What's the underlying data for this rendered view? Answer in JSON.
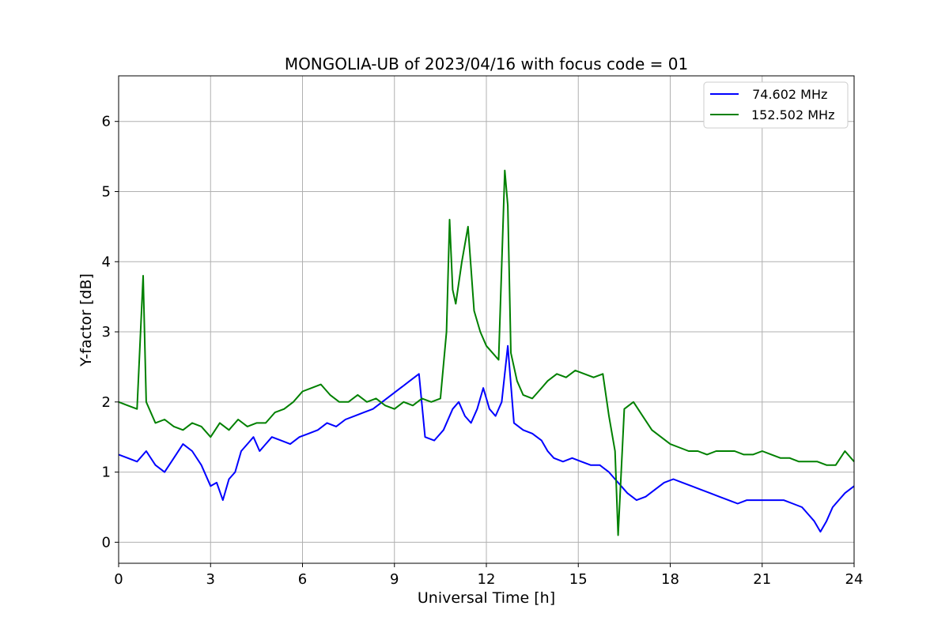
{
  "chart_data": {
    "type": "line",
    "title": "MONGOLIA-UB of 2023/04/16 with focus code = 01",
    "xlabel": "Universal Time [h]",
    "ylabel": "Y-factor [dB]",
    "xlim": [
      0,
      24
    ],
    "ylim": [
      -0.3,
      6.65
    ],
    "xticks": [
      0,
      3,
      6,
      9,
      12,
      15,
      18,
      21,
      24
    ],
    "yticks": [
      0,
      1,
      2,
      3,
      4,
      5,
      6
    ],
    "grid": true,
    "legend_position": "top-right",
    "series": [
      {
        "name": " 74.602 MHz",
        "color": "#0000ff",
        "x": [
          0,
          0.3,
          0.6,
          0.9,
          1.2,
          1.5,
          1.8,
          2.1,
          2.4,
          2.7,
          3.0,
          3.2,
          3.4,
          3.6,
          3.8,
          4.0,
          4.2,
          4.4,
          4.6,
          4.8,
          5.0,
          5.3,
          5.6,
          5.9,
          6.2,
          6.5,
          6.8,
          7.1,
          7.4,
          7.7,
          8.0,
          8.3,
          8.6,
          8.9,
          9.2,
          9.5,
          9.8,
          10.0,
          10.3,
          10.6,
          10.9,
          11.1,
          11.3,
          11.5,
          11.7,
          11.9,
          12.1,
          12.3,
          12.5,
          12.7,
          12.9,
          13.2,
          13.5,
          13.8,
          14.0,
          14.2,
          14.5,
          14.8,
          15.1,
          15.4,
          15.7,
          16.0,
          16.2,
          16.4,
          16.6,
          16.9,
          17.2,
          17.5,
          17.8,
          18.1,
          18.4,
          18.7,
          19.0,
          19.3,
          19.6,
          19.9,
          20.2,
          20.5,
          20.8,
          21.1,
          21.4,
          21.7,
          22.0,
          22.3,
          22.5,
          22.7,
          22.9,
          23.1,
          23.3,
          23.5,
          23.7,
          24.0
        ],
        "y": [
          1.25,
          1.2,
          1.15,
          1.3,
          1.1,
          1.0,
          1.2,
          1.4,
          1.3,
          1.1,
          0.8,
          0.85,
          0.6,
          0.9,
          1.0,
          1.3,
          1.4,
          1.5,
          1.3,
          1.4,
          1.5,
          1.45,
          1.4,
          1.5,
          1.55,
          1.6,
          1.7,
          1.65,
          1.75,
          1.8,
          1.85,
          1.9,
          2.0,
          2.1,
          2.2,
          2.3,
          2.4,
          1.5,
          1.45,
          1.6,
          1.9,
          2.0,
          1.8,
          1.7,
          1.9,
          2.2,
          1.9,
          1.8,
          2.0,
          2.8,
          1.7,
          1.6,
          1.55,
          1.45,
          1.3,
          1.2,
          1.15,
          1.2,
          1.15,
          1.1,
          1.1,
          1.0,
          0.9,
          0.8,
          0.7,
          0.6,
          0.65,
          0.75,
          0.85,
          0.9,
          0.85,
          0.8,
          0.75,
          0.7,
          0.65,
          0.6,
          0.55,
          0.6,
          0.6,
          0.6,
          0.6,
          0.6,
          0.55,
          0.5,
          0.4,
          0.3,
          0.15,
          0.3,
          0.5,
          0.6,
          0.7,
          0.8
        ]
      },
      {
        "name": "152.502 MHz",
        "color": "#008000",
        "x": [
          0,
          0.3,
          0.6,
          0.8,
          0.9,
          1.2,
          1.5,
          1.8,
          2.1,
          2.4,
          2.7,
          3.0,
          3.3,
          3.6,
          3.9,
          4.2,
          4.5,
          4.8,
          5.1,
          5.4,
          5.7,
          6.0,
          6.3,
          6.6,
          6.9,
          7.2,
          7.5,
          7.8,
          8.1,
          8.4,
          8.7,
          9.0,
          9.3,
          9.6,
          9.9,
          10.2,
          10.5,
          10.7,
          10.8,
          10.9,
          11.0,
          11.2,
          11.4,
          11.6,
          11.8,
          12.0,
          12.2,
          12.4,
          12.6,
          12.7,
          12.8,
          13.0,
          13.2,
          13.5,
          13.8,
          14.0,
          14.3,
          14.6,
          14.9,
          15.2,
          15.5,
          15.8,
          16.0,
          16.2,
          16.3,
          16.5,
          16.8,
          17.1,
          17.4,
          17.7,
          18.0,
          18.3,
          18.6,
          18.9,
          19.2,
          19.5,
          19.8,
          20.1,
          20.4,
          20.7,
          21.0,
          21.3,
          21.6,
          21.9,
          22.2,
          22.5,
          22.8,
          23.1,
          23.4,
          23.7,
          24.0
        ],
        "y": [
          2.0,
          1.95,
          1.9,
          3.8,
          2.0,
          1.7,
          1.75,
          1.65,
          1.6,
          1.7,
          1.65,
          1.5,
          1.7,
          1.6,
          1.75,
          1.65,
          1.7,
          1.7,
          1.85,
          1.9,
          2.0,
          2.15,
          2.2,
          2.25,
          2.1,
          2.0,
          2.0,
          2.1,
          2.0,
          2.05,
          1.95,
          1.9,
          2.0,
          1.95,
          2.05,
          2.0,
          2.05,
          3.0,
          4.6,
          3.6,
          3.4,
          4.0,
          4.5,
          3.3,
          3.0,
          2.8,
          2.7,
          2.6,
          5.3,
          4.8,
          2.7,
          2.3,
          2.1,
          2.05,
          2.2,
          2.3,
          2.4,
          2.35,
          2.45,
          2.4,
          2.35,
          2.4,
          1.8,
          1.3,
          0.1,
          1.9,
          2.0,
          1.8,
          1.6,
          1.5,
          1.4,
          1.35,
          1.3,
          1.3,
          1.25,
          1.3,
          1.3,
          1.3,
          1.25,
          1.25,
          1.3,
          1.25,
          1.2,
          1.2,
          1.15,
          1.15,
          1.15,
          1.1,
          1.1,
          1.3,
          1.15
        ]
      }
    ]
  }
}
